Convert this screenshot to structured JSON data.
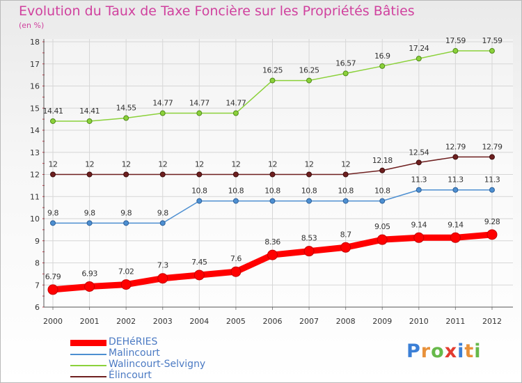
{
  "title": "Evolution du Taux de Taxe Foncière sur les Propriétés Bâties",
  "unit_label": "(en %)",
  "brand": {
    "letters": [
      "P",
      "r",
      "o",
      "x",
      "i",
      "t",
      "i"
    ],
    "colors": [
      "#3b7fd6",
      "#e8913a",
      "#67b94a",
      "#e33b2f",
      "#3b7fd6",
      "#e8913a",
      "#67b94a"
    ]
  },
  "chart_data": {
    "type": "line",
    "title": "Evolution du Taux de Taxe Foncière sur les Propriétés Bâties",
    "ylabel": "(en %)",
    "xlabel": "",
    "x": [
      "2000",
      "2001",
      "2002",
      "2003",
      "2004",
      "2005",
      "2006",
      "2007",
      "2008",
      "2009",
      "2010",
      "2011",
      "2012"
    ],
    "ylim": [
      6,
      18
    ],
    "yticks": [
      6,
      7,
      8,
      9,
      10,
      11,
      12,
      13,
      14,
      15,
      16,
      17,
      18
    ],
    "grid": true,
    "legend_position": "bottom-left",
    "series": [
      {
        "name": "DEHéRIES",
        "color": "#ff0000",
        "values": [
          6.79,
          6.93,
          7.02,
          7.3,
          7.45,
          7.6,
          8.36,
          8.53,
          8.7,
          9.05,
          9.14,
          9.14,
          9.28
        ],
        "labels": [
          "6.79",
          "6.93",
          "7.02",
          "7.3",
          "7.45",
          "7.6",
          "8.36",
          "8.53",
          "8.7",
          "9.05",
          "9.14",
          "9.14",
          "9.28"
        ]
      },
      {
        "name": "Malincourt",
        "color": "#4d8fd1",
        "values": [
          9.8,
          9.8,
          9.8,
          9.8,
          10.8,
          10.8,
          10.8,
          10.8,
          10.8,
          10.8,
          11.3,
          11.3,
          11.3
        ],
        "labels": [
          "9.8",
          "9.8",
          "9.8",
          "9.8",
          "10.8",
          "10.8",
          "10.8",
          "10.8",
          "10.8",
          "10.8",
          "11.3",
          "11.3",
          "11.3"
        ]
      },
      {
        "name": "Walincourt-Selvigny",
        "color": "#8bd13a",
        "values": [
          14.41,
          14.41,
          14.55,
          14.77,
          14.77,
          14.77,
          16.25,
          16.25,
          16.57,
          16.9,
          17.24,
          17.59,
          17.59
        ],
        "labels": [
          "14.41",
          "14.41",
          "14.55",
          "14.77",
          "14.77",
          "14.77",
          "16.25",
          "16.25",
          "16.57",
          "16.9",
          "17.24",
          "17.59",
          "17.59"
        ]
      },
      {
        "name": "Élincourt",
        "color": "#6e1f1f",
        "values": [
          12,
          12,
          12,
          12,
          12,
          12,
          12,
          12,
          12,
          12.18,
          12.54,
          12.79,
          12.79
        ],
        "labels": [
          "12",
          "12",
          "12",
          "12",
          "12",
          "12",
          "12",
          "12",
          "12",
          "12.18",
          "12.54",
          "12.79",
          "12.79"
        ]
      }
    ]
  }
}
